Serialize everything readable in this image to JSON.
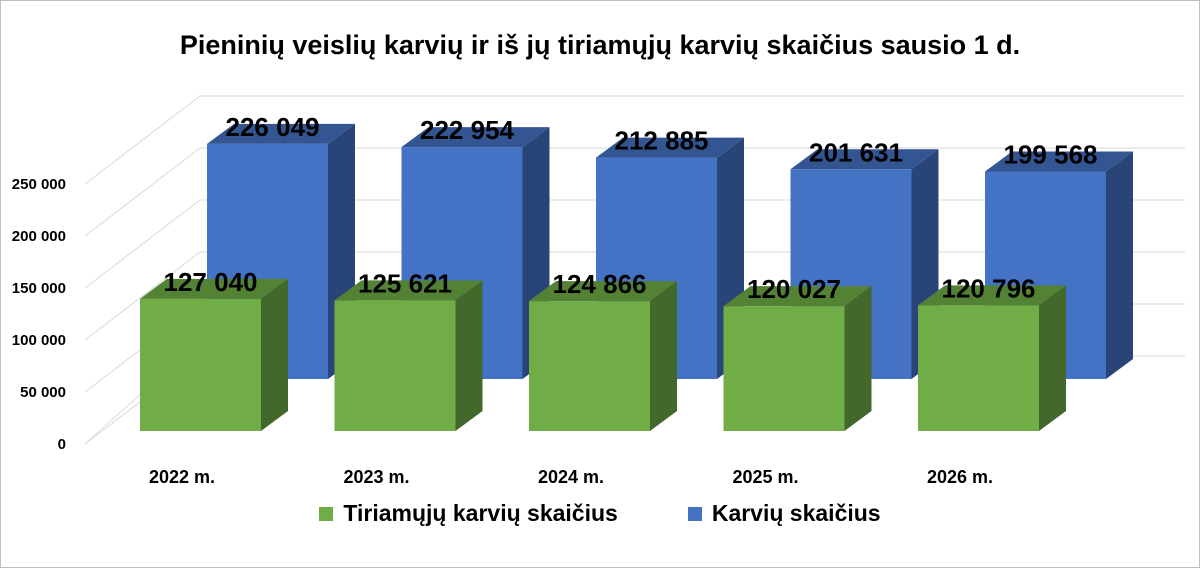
{
  "chart_data": {
    "type": "bar",
    "title": "Pieninių veislių karvių ir iš jų tiriamųjų karvių skaičius sausio 1 d.",
    "categories": [
      "2022 m.",
      "2023 m.",
      "2024 m.",
      "2025 m.",
      "2026 m."
    ],
    "series": [
      {
        "name": "Tiriamųjų karvių skaičius",
        "color": "#70ad47",
        "values": [
          127040,
          125621,
          124866,
          120027,
          120796
        ],
        "labels": [
          "127 040",
          "125 621",
          "124 866",
          "120 027",
          "120 796"
        ]
      },
      {
        "name": "Karvių skaičius",
        "color": "#4472c4",
        "values": [
          226049,
          222954,
          212885,
          201631,
          199568
        ],
        "labels": [
          "226 049",
          "222 954",
          "212 885",
          "201 631",
          "199 568"
        ]
      }
    ],
    "y_ticks": [
      0,
      50000,
      100000,
      150000,
      200000,
      250000
    ],
    "y_tick_labels": [
      "0",
      "50 000",
      "100 000",
      "150 000",
      "200 000",
      "250 000"
    ],
    "ylim": [
      0,
      250000
    ],
    "legend_position": "bottom",
    "grid": true,
    "style": "3d-column"
  }
}
